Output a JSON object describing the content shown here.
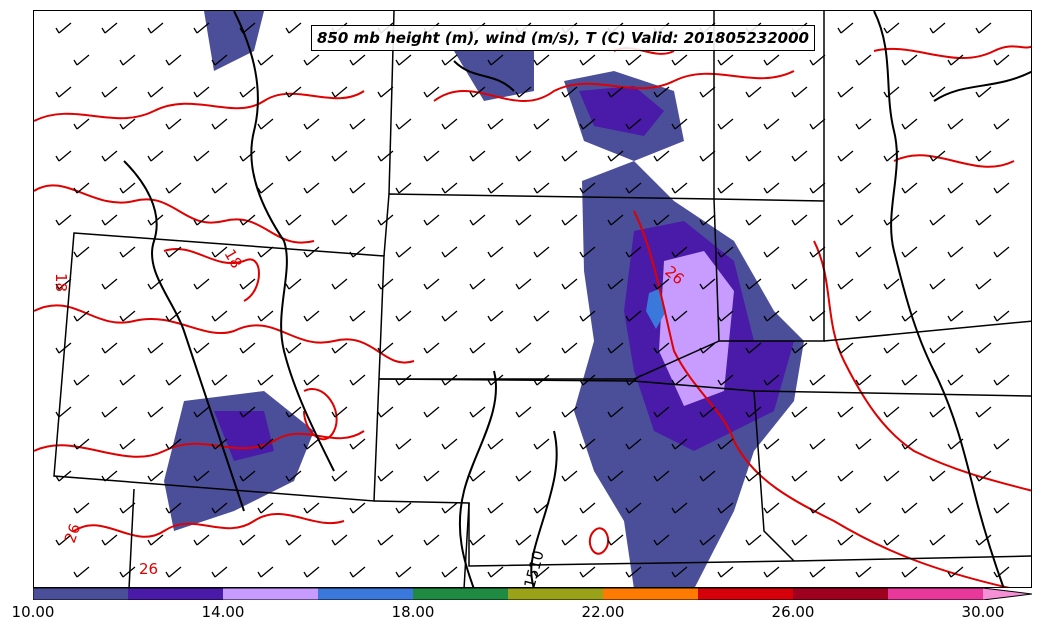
{
  "title": "850 mb height (m), wind (m/s), T (C) Valid: 201805232000",
  "colorbar": {
    "colors": [
      "#4b4f9a",
      "#4a1aa8",
      "#c79bff",
      "#3b78dc",
      "#1f8a41",
      "#9aa21a",
      "#ff7a00",
      "#d6000a",
      "#a0001f",
      "#e8389b",
      "#f58fd6"
    ],
    "ticks": [
      "10.00",
      "14.00",
      "18.00",
      "22.00",
      "26.00",
      "30.00"
    ]
  },
  "contour_labels": [
    {
      "text": "26",
      "color": "#e00000"
    },
    {
      "text": "26",
      "color": "#e00000"
    },
    {
      "text": "26",
      "color": "#e00000"
    },
    {
      "text": "18",
      "color": "#e00000"
    },
    {
      "text": "18",
      "color": "#e00000"
    },
    {
      "text": "1510",
      "color": "#000000"
    }
  ]
}
